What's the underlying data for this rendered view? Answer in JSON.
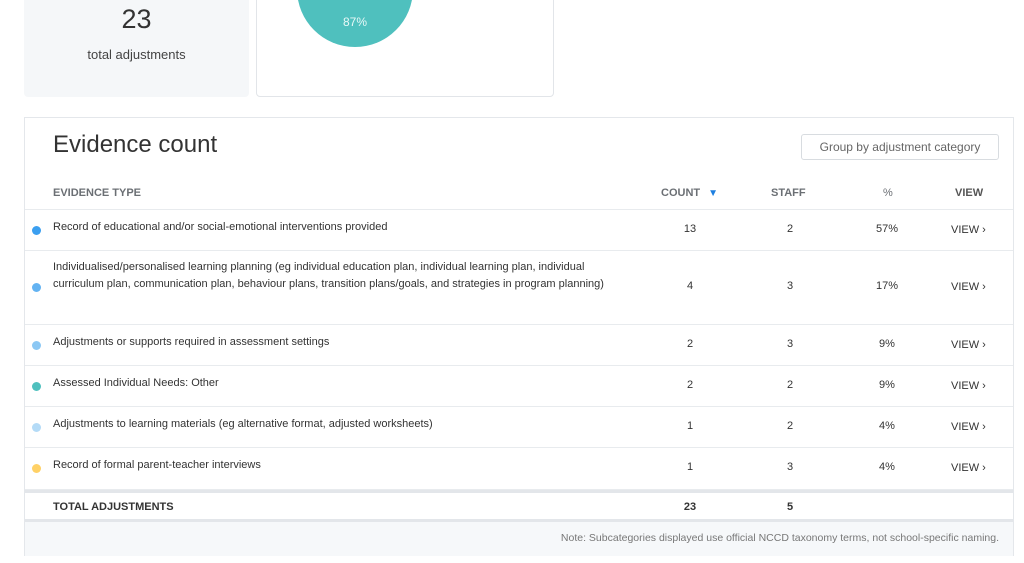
{
  "summary": {
    "total_value": "23",
    "total_label": "total adjustments",
    "pie_label": "87%",
    "pie_color": "#4fc0be"
  },
  "evidence": {
    "title": "Evidence count",
    "group_button": "Group by adjustment category",
    "columns": {
      "type": "EVIDENCE TYPE",
      "count": "COUNT",
      "count_sort_icon": "▼",
      "staff": "STAFF",
      "pct": "%",
      "view": "VIEW"
    },
    "rows": [
      {
        "color": "#3b9ff0",
        "label": "Record of educational and/or social-emotional interventions provided",
        "count": "13",
        "staff": "2",
        "pct": "57%",
        "view": "VIEW",
        "chevron": "›"
      },
      {
        "color": "#63b3f2",
        "label": "Individualised/personalised learning planning (eg individual education plan, individual learning plan, individual curriculum plan, communication plan, behaviour plans, transition plans/goals, and strategies in program planning)",
        "count": "4",
        "staff": "3",
        "pct": "17%",
        "view": "VIEW",
        "chevron": "›"
      },
      {
        "color": "#8cc8f4",
        "label": "Adjustments or supports required in assessment settings",
        "count": "2",
        "staff": "3",
        "pct": "9%",
        "view": "VIEW",
        "chevron": "›"
      },
      {
        "color": "#4fc0be",
        "label": "Assessed Individual Needs: Other",
        "count": "2",
        "staff": "2",
        "pct": "9%",
        "view": "VIEW",
        "chevron": "›"
      },
      {
        "color": "#b4dbf7",
        "label": "Adjustments to learning materials (eg alternative format, adjusted worksheets)",
        "count": "1",
        "staff": "2",
        "pct": "4%",
        "view": "VIEW",
        "chevron": "›"
      },
      {
        "color": "#ffd166",
        "label": "Record of formal parent-teacher interviews",
        "count": "1",
        "staff": "3",
        "pct": "4%",
        "view": "VIEW",
        "chevron": "›"
      }
    ],
    "total": {
      "label": "TOTAL ADJUSTMENTS",
      "count": "23",
      "staff": "5"
    },
    "note": "Note: Subcategories displayed use official NCCD taxonomy terms, not school-specific naming."
  }
}
